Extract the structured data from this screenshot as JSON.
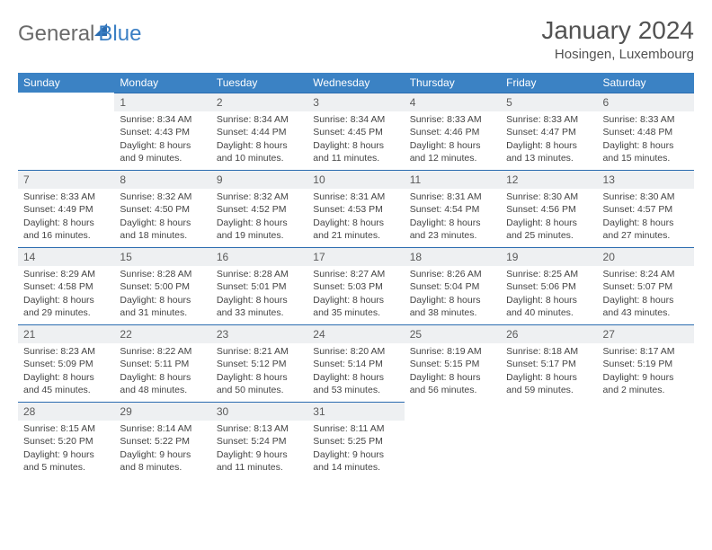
{
  "logo": {
    "word1": "General",
    "word2": "Blue"
  },
  "title": "January 2024",
  "subtitle": "Hosingen, Luxembourg",
  "colors": {
    "header_bg": "#3b82c4",
    "header_text": "#ffffff",
    "daynum_bg": "#eef0f2",
    "daynum_border": "#2b6cb0",
    "body_text": "#444444",
    "title_text": "#525252",
    "logo_gray": "#6a6a6a",
    "logo_blue": "#3b7fc4"
  },
  "weekdays": [
    "Sunday",
    "Monday",
    "Tuesday",
    "Wednesday",
    "Thursday",
    "Friday",
    "Saturday"
  ],
  "layout": {
    "columns": 7,
    "rows": 5,
    "first_day_column": 1
  },
  "days": [
    null,
    {
      "n": "1",
      "sr": "Sunrise: 8:34 AM",
      "ss": "Sunset: 4:43 PM",
      "d1": "Daylight: 8 hours",
      "d2": "and 9 minutes."
    },
    {
      "n": "2",
      "sr": "Sunrise: 8:34 AM",
      "ss": "Sunset: 4:44 PM",
      "d1": "Daylight: 8 hours",
      "d2": "and 10 minutes."
    },
    {
      "n": "3",
      "sr": "Sunrise: 8:34 AM",
      "ss": "Sunset: 4:45 PM",
      "d1": "Daylight: 8 hours",
      "d2": "and 11 minutes."
    },
    {
      "n": "4",
      "sr": "Sunrise: 8:33 AM",
      "ss": "Sunset: 4:46 PM",
      "d1": "Daylight: 8 hours",
      "d2": "and 12 minutes."
    },
    {
      "n": "5",
      "sr": "Sunrise: 8:33 AM",
      "ss": "Sunset: 4:47 PM",
      "d1": "Daylight: 8 hours",
      "d2": "and 13 minutes."
    },
    {
      "n": "6",
      "sr": "Sunrise: 8:33 AM",
      "ss": "Sunset: 4:48 PM",
      "d1": "Daylight: 8 hours",
      "d2": "and 15 minutes."
    },
    {
      "n": "7",
      "sr": "Sunrise: 8:33 AM",
      "ss": "Sunset: 4:49 PM",
      "d1": "Daylight: 8 hours",
      "d2": "and 16 minutes."
    },
    {
      "n": "8",
      "sr": "Sunrise: 8:32 AM",
      "ss": "Sunset: 4:50 PM",
      "d1": "Daylight: 8 hours",
      "d2": "and 18 minutes."
    },
    {
      "n": "9",
      "sr": "Sunrise: 8:32 AM",
      "ss": "Sunset: 4:52 PM",
      "d1": "Daylight: 8 hours",
      "d2": "and 19 minutes."
    },
    {
      "n": "10",
      "sr": "Sunrise: 8:31 AM",
      "ss": "Sunset: 4:53 PM",
      "d1": "Daylight: 8 hours",
      "d2": "and 21 minutes."
    },
    {
      "n": "11",
      "sr": "Sunrise: 8:31 AM",
      "ss": "Sunset: 4:54 PM",
      "d1": "Daylight: 8 hours",
      "d2": "and 23 minutes."
    },
    {
      "n": "12",
      "sr": "Sunrise: 8:30 AM",
      "ss": "Sunset: 4:56 PM",
      "d1": "Daylight: 8 hours",
      "d2": "and 25 minutes."
    },
    {
      "n": "13",
      "sr": "Sunrise: 8:30 AM",
      "ss": "Sunset: 4:57 PM",
      "d1": "Daylight: 8 hours",
      "d2": "and 27 minutes."
    },
    {
      "n": "14",
      "sr": "Sunrise: 8:29 AM",
      "ss": "Sunset: 4:58 PM",
      "d1": "Daylight: 8 hours",
      "d2": "and 29 minutes."
    },
    {
      "n": "15",
      "sr": "Sunrise: 8:28 AM",
      "ss": "Sunset: 5:00 PM",
      "d1": "Daylight: 8 hours",
      "d2": "and 31 minutes."
    },
    {
      "n": "16",
      "sr": "Sunrise: 8:28 AM",
      "ss": "Sunset: 5:01 PM",
      "d1": "Daylight: 8 hours",
      "d2": "and 33 minutes."
    },
    {
      "n": "17",
      "sr": "Sunrise: 8:27 AM",
      "ss": "Sunset: 5:03 PM",
      "d1": "Daylight: 8 hours",
      "d2": "and 35 minutes."
    },
    {
      "n": "18",
      "sr": "Sunrise: 8:26 AM",
      "ss": "Sunset: 5:04 PM",
      "d1": "Daylight: 8 hours",
      "d2": "and 38 minutes."
    },
    {
      "n": "19",
      "sr": "Sunrise: 8:25 AM",
      "ss": "Sunset: 5:06 PM",
      "d1": "Daylight: 8 hours",
      "d2": "and 40 minutes."
    },
    {
      "n": "20",
      "sr": "Sunrise: 8:24 AM",
      "ss": "Sunset: 5:07 PM",
      "d1": "Daylight: 8 hours",
      "d2": "and 43 minutes."
    },
    {
      "n": "21",
      "sr": "Sunrise: 8:23 AM",
      "ss": "Sunset: 5:09 PM",
      "d1": "Daylight: 8 hours",
      "d2": "and 45 minutes."
    },
    {
      "n": "22",
      "sr": "Sunrise: 8:22 AM",
      "ss": "Sunset: 5:11 PM",
      "d1": "Daylight: 8 hours",
      "d2": "and 48 minutes."
    },
    {
      "n": "23",
      "sr": "Sunrise: 8:21 AM",
      "ss": "Sunset: 5:12 PM",
      "d1": "Daylight: 8 hours",
      "d2": "and 50 minutes."
    },
    {
      "n": "24",
      "sr": "Sunrise: 8:20 AM",
      "ss": "Sunset: 5:14 PM",
      "d1": "Daylight: 8 hours",
      "d2": "and 53 minutes."
    },
    {
      "n": "25",
      "sr": "Sunrise: 8:19 AM",
      "ss": "Sunset: 5:15 PM",
      "d1": "Daylight: 8 hours",
      "d2": "and 56 minutes."
    },
    {
      "n": "26",
      "sr": "Sunrise: 8:18 AM",
      "ss": "Sunset: 5:17 PM",
      "d1": "Daylight: 8 hours",
      "d2": "and 59 minutes."
    },
    {
      "n": "27",
      "sr": "Sunrise: 8:17 AM",
      "ss": "Sunset: 5:19 PM",
      "d1": "Daylight: 9 hours",
      "d2": "and 2 minutes."
    },
    {
      "n": "28",
      "sr": "Sunrise: 8:15 AM",
      "ss": "Sunset: 5:20 PM",
      "d1": "Daylight: 9 hours",
      "d2": "and 5 minutes."
    },
    {
      "n": "29",
      "sr": "Sunrise: 8:14 AM",
      "ss": "Sunset: 5:22 PM",
      "d1": "Daylight: 9 hours",
      "d2": "and 8 minutes."
    },
    {
      "n": "30",
      "sr": "Sunrise: 8:13 AM",
      "ss": "Sunset: 5:24 PM",
      "d1": "Daylight: 9 hours",
      "d2": "and 11 minutes."
    },
    {
      "n": "31",
      "sr": "Sunrise: 8:11 AM",
      "ss": "Sunset: 5:25 PM",
      "d1": "Daylight: 9 hours",
      "d2": "and 14 minutes."
    },
    null,
    null,
    null
  ]
}
